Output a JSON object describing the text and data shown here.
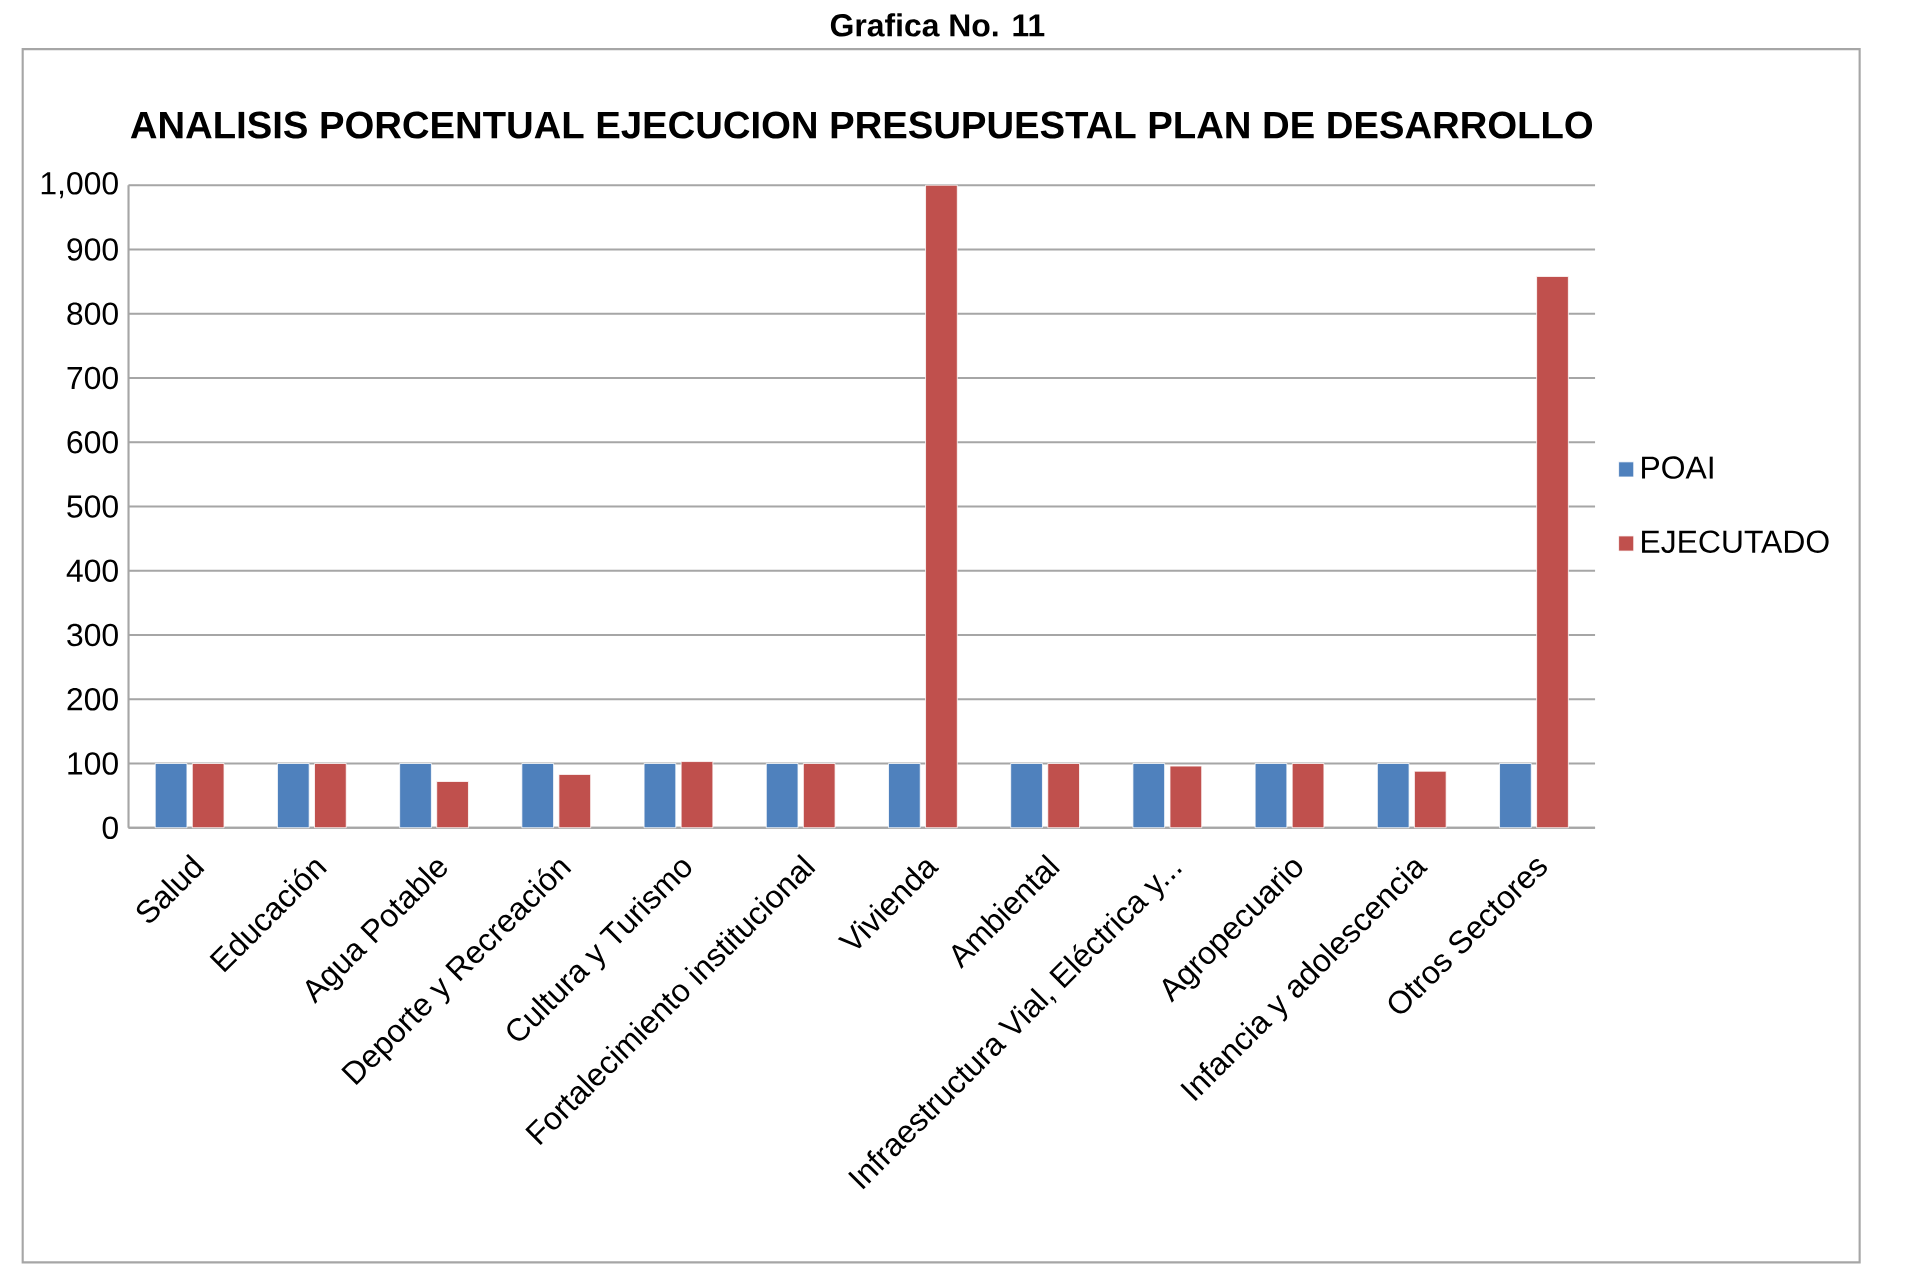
{
  "chart_data": {
    "type": "bar",
    "title": "ANALISIS PORCENTUAL EJECUCION PRESUPUESTAL  PLAN DE DESARROLLO",
    "annotations": [
      "Grafica No. 11"
    ],
    "categories": [
      "Salud",
      "Educación",
      "Agua Potable",
      "Deporte y Recreación",
      "Cultura y Turismo",
      "Fortalecimiento institucional",
      "Vivienda",
      "Ambiental",
      "Infraestructura Vial, Eléctrica y...",
      "Agropecuario",
      "Infancia y adolescencia",
      "Otros Sectores"
    ],
    "series": [
      {
        "name": "POAI",
        "color": "#4f81bd",
        "values": [
          100,
          100,
          100,
          100,
          100,
          100,
          100,
          100,
          100,
          100,
          100,
          100
        ]
      },
      {
        "name": "EJECUTADO",
        "color": "#c0504d",
        "values": [
          100,
          100,
          72,
          83,
          103,
          100,
          1000,
          100,
          96,
          100,
          88,
          858
        ]
      }
    ],
    "ylim": [
      0,
      1000
    ],
    "yticks": [
      0,
      100,
      200,
      300,
      400,
      500,
      600,
      700,
      800,
      900,
      {
        "value": 1000,
        "label": "1,000"
      }
    ],
    "grid": "y",
    "legend": "right"
  }
}
